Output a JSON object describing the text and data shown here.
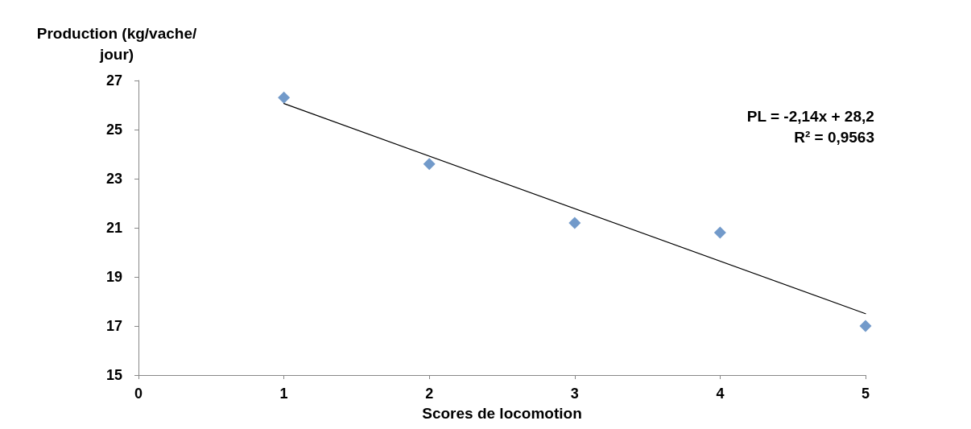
{
  "chart_data": {
    "type": "scatter",
    "xlabel": "Scores de locomotion",
    "ylabel": "Production (kg/vache/jour)",
    "x": [
      1,
      2,
      3,
      4,
      5
    ],
    "series": [
      {
        "color": "#4f81bd",
        "values": [
          26.3,
          23.6,
          21.2,
          20.8,
          17.0
        ]
      },
      {
        "type": "line",
        "color": "#000000",
        "x": [
          1,
          5
        ],
        "values": [
          26.06,
          17.5
        ],
        "marker": "none"
      }
    ],
    "xlim": [
      0,
      5
    ],
    "xticks": [
      0,
      1,
      2,
      3,
      4,
      5
    ],
    "ylim": [
      15,
      27
    ],
    "yticks": [
      15,
      17,
      19,
      21,
      23,
      25,
      27
    ],
    "marker": "diamond",
    "grid": false,
    "annotations": [
      "PL = -2,14x + 28,2",
      "R² = 0,9563"
    ]
  }
}
